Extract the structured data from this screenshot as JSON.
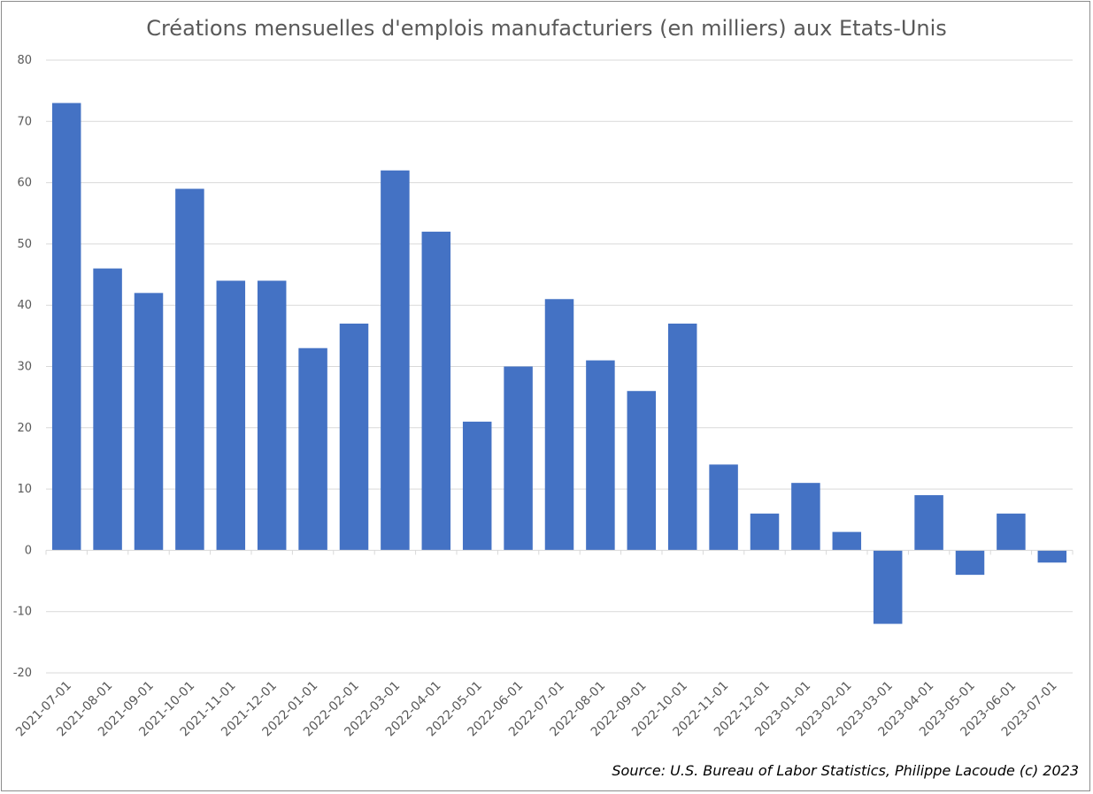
{
  "chart_data": {
    "type": "bar",
    "title": "Créations mensuelles d'emplois manufacturiers (en milliers) aux Etats-Unis",
    "xlabel": "",
    "ylabel": "",
    "ylim": [
      -20,
      80
    ],
    "yticks": [
      "-20",
      "-10",
      "0",
      "10",
      "20",
      "30",
      "40",
      "50",
      "60",
      "70",
      "80"
    ],
    "grid": true,
    "categories": [
      "2021-07-01",
      "2021-08-01",
      "2021-09-01",
      "2021-10-01",
      "2021-11-01",
      "2021-12-01",
      "2022-01-01",
      "2022-02-01",
      "2022-03-01",
      "2022-04-01",
      "2022-05-01",
      "2022-06-01",
      "2022-07-01",
      "2022-08-01",
      "2022-09-01",
      "2022-10-01",
      "2022-11-01",
      "2022-12-01",
      "2023-01-01",
      "2023-02-01",
      "2023-03-01",
      "2023-04-01",
      "2023-05-01",
      "2023-06-01",
      "2023-07-01"
    ],
    "values": [
      73,
      46,
      42,
      59,
      44,
      44,
      33,
      37,
      62,
      52,
      21,
      30,
      41,
      31,
      26,
      37,
      14,
      6,
      11,
      3,
      -12,
      9,
      -4,
      6,
      -2
    ],
    "bar_color": "#4472c4",
    "source": "Source: U.S. Bureau of Labor Statistics, Philippe Lacoude (c) 2023"
  }
}
